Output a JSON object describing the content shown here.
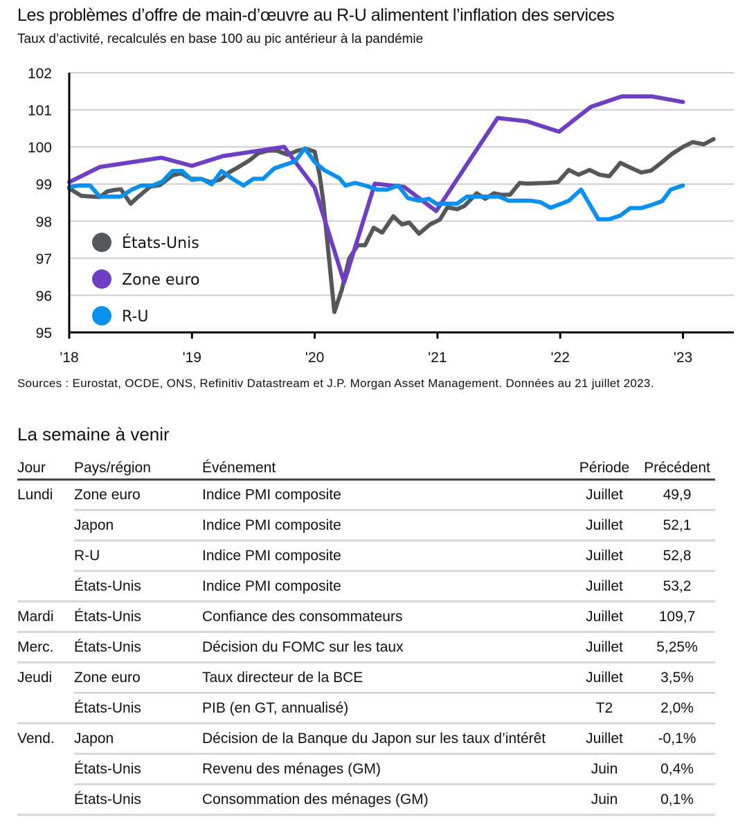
{
  "header": {
    "title": "Les problèmes d’offre de main-d’œuvre au R-U alimentent l’inflation des services",
    "subtitle": "Taux d’activité, recalculés en base 100 au pic antérieur à la pandémie"
  },
  "chart_data": {
    "type": "line",
    "title": "Les problèmes d’offre de main-d’œuvre au R-U alimentent l’inflation des services",
    "subtitle": "Taux d’activité, recalculés en base 100 au pic antérieur à la pandémie",
    "xlabel": "",
    "ylabel": "",
    "ylim": [
      95,
      102
    ],
    "xlim": [
      2018.0,
      2023.4
    ],
    "yticks": [
      95,
      96,
      97,
      98,
      99,
      100,
      101,
      102
    ],
    "xticks": [
      {
        "value": 2018,
        "label": "'18"
      },
      {
        "value": 2019,
        "label": "'19"
      },
      {
        "value": 2020,
        "label": "'20"
      },
      {
        "value": 2021,
        "label": "'21"
      },
      {
        "value": 2022,
        "label": "'22"
      },
      {
        "value": 2023,
        "label": "'23"
      }
    ],
    "grid": "horizontal",
    "legend_position": "bottom-left",
    "series": [
      {
        "name": "États-Unis",
        "color": "#54585A",
        "points": [
          [
            2018.0,
            98.88
          ],
          [
            2018.1,
            98.68
          ],
          [
            2018.25,
            98.65
          ],
          [
            2018.31,
            98.8
          ],
          [
            2018.37,
            98.84
          ],
          [
            2018.42,
            98.86
          ],
          [
            2018.5,
            98.47
          ],
          [
            2018.56,
            98.65
          ],
          [
            2018.66,
            98.93
          ],
          [
            2018.74,
            98.97
          ],
          [
            2018.84,
            99.23
          ],
          [
            2018.91,
            99.29
          ],
          [
            2018.99,
            99.14
          ],
          [
            2019.07,
            99.14
          ],
          [
            2019.15,
            99.05
          ],
          [
            2019.23,
            99.12
          ],
          [
            2019.3,
            99.31
          ],
          [
            2019.38,
            99.46
          ],
          [
            2019.47,
            99.64
          ],
          [
            2019.54,
            99.83
          ],
          [
            2019.62,
            99.9
          ],
          [
            2019.69,
            99.9
          ],
          [
            2019.78,
            99.79
          ],
          [
            2019.86,
            99.9
          ],
          [
            2019.94,
            99.94
          ],
          [
            2020.0,
            99.87
          ],
          [
            2020.04,
            99.24
          ],
          [
            2020.07,
            98.53
          ],
          [
            2020.16,
            95.55
          ],
          [
            2020.22,
            96.14
          ],
          [
            2020.28,
            96.98
          ],
          [
            2020.35,
            97.35
          ],
          [
            2020.41,
            97.35
          ],
          [
            2020.48,
            97.82
          ],
          [
            2020.55,
            97.69
          ],
          [
            2020.64,
            98.13
          ],
          [
            2020.71,
            97.91
          ],
          [
            2020.77,
            97.96
          ],
          [
            2020.85,
            97.66
          ],
          [
            2020.94,
            97.91
          ],
          [
            2021.02,
            98.04
          ],
          [
            2021.08,
            98.37
          ],
          [
            2021.16,
            98.32
          ],
          [
            2021.22,
            98.41
          ],
          [
            2021.32,
            98.75
          ],
          [
            2021.39,
            98.6
          ],
          [
            2021.46,
            98.75
          ],
          [
            2021.52,
            98.71
          ],
          [
            2021.59,
            98.71
          ],
          [
            2021.67,
            99.03
          ],
          [
            2021.73,
            99.01
          ],
          [
            2021.9,
            99.03
          ],
          [
            2021.98,
            99.05
          ],
          [
            2022.07,
            99.38
          ],
          [
            2022.15,
            99.25
          ],
          [
            2022.24,
            99.38
          ],
          [
            2022.32,
            99.25
          ],
          [
            2022.4,
            99.21
          ],
          [
            2022.49,
            99.57
          ],
          [
            2022.56,
            99.46
          ],
          [
            2022.66,
            99.31
          ],
          [
            2022.74,
            99.36
          ],
          [
            2022.83,
            99.59
          ],
          [
            2022.91,
            99.81
          ],
          [
            2023.0,
            100.0
          ],
          [
            2023.08,
            100.13
          ],
          [
            2023.17,
            100.07
          ],
          [
            2023.25,
            100.21
          ]
        ]
      },
      {
        "name": "Zone euro",
        "color": "#6E3FC4",
        "points": [
          [
            2018.0,
            99.05
          ],
          [
            2018.25,
            99.46
          ],
          [
            2018.75,
            99.71
          ],
          [
            2019.0,
            99.49
          ],
          [
            2019.25,
            99.75
          ],
          [
            2019.75,
            100.0
          ],
          [
            2020.0,
            98.9
          ],
          [
            2020.24,
            96.35
          ],
          [
            2020.49,
            99.01
          ],
          [
            2020.73,
            98.92
          ],
          [
            2020.99,
            98.27
          ],
          [
            2021.24,
            99.53
          ],
          [
            2021.49,
            100.78
          ],
          [
            2021.73,
            100.69
          ],
          [
            2021.99,
            100.41
          ],
          [
            2022.25,
            101.08
          ],
          [
            2022.5,
            101.36
          ],
          [
            2022.75,
            101.36
          ],
          [
            2023.0,
            101.21
          ]
        ]
      },
      {
        "name": "R-U",
        "color": "#0A91F0",
        "points": [
          [
            2018.0,
            98.92
          ],
          [
            2018.08,
            98.96
          ],
          [
            2018.17,
            98.96
          ],
          [
            2018.25,
            98.66
          ],
          [
            2018.34,
            98.66
          ],
          [
            2018.42,
            98.66
          ],
          [
            2018.51,
            98.85
          ],
          [
            2018.59,
            98.96
          ],
          [
            2018.68,
            98.96
          ],
          [
            2018.76,
            99.07
          ],
          [
            2018.84,
            99.35
          ],
          [
            2018.92,
            99.35
          ],
          [
            2019.0,
            99.11
          ],
          [
            2019.08,
            99.14
          ],
          [
            2019.16,
            98.99
          ],
          [
            2019.24,
            99.35
          ],
          [
            2019.33,
            99.14
          ],
          [
            2019.42,
            98.96
          ],
          [
            2019.5,
            99.14
          ],
          [
            2019.58,
            99.14
          ],
          [
            2019.67,
            99.42
          ],
          [
            2019.75,
            99.51
          ],
          [
            2019.84,
            99.61
          ],
          [
            2019.92,
            99.96
          ],
          [
            2020.0,
            99.59
          ],
          [
            2020.08,
            99.37
          ],
          [
            2020.2,
            99.16
          ],
          [
            2020.25,
            98.96
          ],
          [
            2020.33,
            99.03
          ],
          [
            2020.41,
            98.96
          ],
          [
            2020.51,
            98.85
          ],
          [
            2020.59,
            98.85
          ],
          [
            2020.68,
            98.96
          ],
          [
            2020.76,
            98.62
          ],
          [
            2020.85,
            98.55
          ],
          [
            2020.93,
            98.6
          ],
          [
            2020.99,
            98.47
          ],
          [
            2021.07,
            98.47
          ],
          [
            2021.16,
            98.47
          ],
          [
            2021.24,
            98.66
          ],
          [
            2021.33,
            98.66
          ],
          [
            2021.41,
            98.66
          ],
          [
            2021.5,
            98.66
          ],
          [
            2021.58,
            98.55
          ],
          [
            2021.67,
            98.55
          ],
          [
            2021.76,
            98.55
          ],
          [
            2021.84,
            98.51
          ],
          [
            2021.92,
            98.36
          ],
          [
            2022.01,
            98.47
          ],
          [
            2022.07,
            98.55
          ],
          [
            2022.17,
            98.85
          ],
          [
            2022.23,
            98.51
          ],
          [
            2022.31,
            98.05
          ],
          [
            2022.4,
            98.05
          ],
          [
            2022.49,
            98.15
          ],
          [
            2022.57,
            98.35
          ],
          [
            2022.66,
            98.35
          ],
          [
            2022.74,
            98.43
          ],
          [
            2022.83,
            98.54
          ],
          [
            2022.9,
            98.85
          ],
          [
            2023.0,
            98.96
          ]
        ]
      }
    ]
  },
  "legend": {
    "items": [
      {
        "label": "États-Unis",
        "color": "#54585A"
      },
      {
        "label": "Zone euro",
        "color": "#6E3FC4"
      },
      {
        "label": "R-U",
        "color": "#0A91F0"
      }
    ]
  },
  "footer": {
    "sources": "Sources : Eurostat, OCDE, ONS, Refinitiv Datastream et J.P. Morgan Asset Management. Données au 21 juillet 2023."
  },
  "calendar": {
    "title": "La semaine à venir",
    "headers": {
      "day": "Jour",
      "country": "Pays/région",
      "event": "Événement",
      "period": "Période",
      "previous": "Précédent"
    },
    "rows": [
      {
        "day": "Lundi",
        "country": "Zone euro",
        "event": "Indice PMI composite",
        "period": "Juillet",
        "previous": "49,9"
      },
      {
        "day": "",
        "country": "Japon",
        "event": "Indice PMI composite",
        "period": "Juillet",
        "previous": "52,1"
      },
      {
        "day": "",
        "country": "R-U",
        "event": "Indice PMI composite",
        "period": "Juillet",
        "previous": "52,8"
      },
      {
        "day": "",
        "country": "États-Unis",
        "event": "Indice PMI composite",
        "period": "Juillet",
        "previous": "53,2"
      },
      {
        "day": "Mardi",
        "country": "États-Unis",
        "event": "Confiance des consommateurs",
        "period": "Juillet",
        "previous": "109,7"
      },
      {
        "day": "Merc.",
        "country": "États-Unis",
        "event": "Décision du FOMC sur les taux",
        "period": "Juillet",
        "previous": "5,25%"
      },
      {
        "day": "Jeudi",
        "country": "Zone euro",
        "event": "Taux directeur de la BCE",
        "period": "Juillet",
        "previous": "3,5%"
      },
      {
        "day": "",
        "country": "États-Unis",
        "event": "PIB (en GT, annualisé)",
        "period": "T2",
        "previous": "2,0%"
      },
      {
        "day": "Vend.",
        "country": "Japon",
        "event": "Décision de la Banque du Japon sur les taux d’intérêt",
        "period": "Juillet",
        "previous": "-0,1%"
      },
      {
        "day": "",
        "country": "États-Unis",
        "event": "Revenu des ménages (GM)",
        "period": "Juin",
        "previous": "0,4%"
      },
      {
        "day": "",
        "country": "États-Unis",
        "event": "Consommation des ménages (GM)",
        "period": "Juin",
        "previous": "0,1%"
      }
    ]
  }
}
